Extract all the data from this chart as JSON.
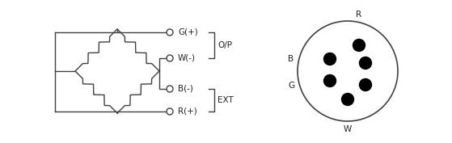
{
  "bg_color": "#ffffff",
  "line_color": "#404040",
  "text_color": "#222222",
  "figsize": [
    5.59,
    1.77
  ],
  "dpi": 100,
  "labels": {
    "G_plus": "G(+)",
    "W_minus": "W(-)",
    "B_minus": "B(-)",
    "R_plus": "R(+)",
    "OP": "O/P",
    "EXT": "EXT",
    "R": "R",
    "B": "B",
    "G": "G",
    "W": "W"
  }
}
